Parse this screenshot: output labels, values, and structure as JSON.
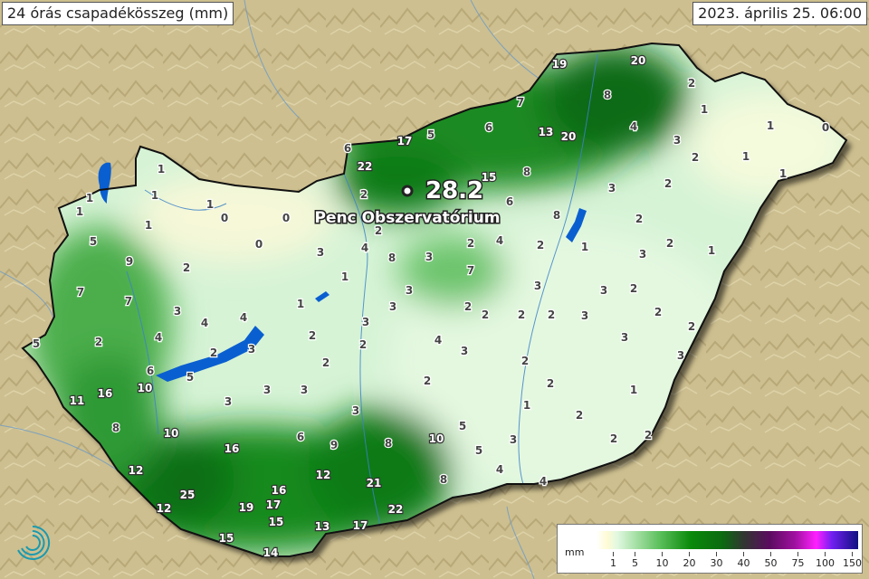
{
  "header": {
    "title": "24 órás csapadékösszeg (mm)",
    "datetime": "2023. április 25. 06:00"
  },
  "highlight_station": {
    "name": "Penc Obszervatórium",
    "value": "28.2"
  },
  "station_values": [
    "1",
    "1",
    "1",
    "1",
    "1",
    "1",
    "0",
    "0",
    "0",
    "5",
    "9",
    "2",
    "7",
    "7",
    "3",
    "4",
    "4",
    "4",
    "2",
    "5",
    "2",
    "3",
    "6",
    "5",
    "10",
    "11",
    "16",
    "3",
    "3",
    "8",
    "10",
    "16",
    "12",
    "25",
    "12",
    "19",
    "17",
    "16",
    "15",
    "15",
    "14",
    "13",
    "17",
    "22",
    "21",
    "12",
    "6",
    "9",
    "8",
    "10",
    "5",
    "5",
    "8",
    "4",
    "4",
    "3",
    "3",
    "2",
    "6",
    "22",
    "17",
    "5",
    "6",
    "19",
    "20",
    "7",
    "8",
    "13",
    "20",
    "15",
    "8",
    "6",
    "8",
    "2",
    "4",
    "8",
    "3",
    "1",
    "1",
    "2",
    "3",
    "2",
    "2",
    "3",
    "2",
    "1",
    "1",
    "0",
    "4",
    "3",
    "2",
    "1",
    "1",
    "2",
    "3",
    "2",
    "2",
    "2",
    "4",
    "1",
    "3",
    "2",
    "1",
    "3",
    "7",
    "3",
    "3",
    "2",
    "3",
    "2",
    "2",
    "2",
    "2",
    "2",
    "2",
    "3",
    "3",
    "4",
    "3",
    "2",
    "2",
    "2",
    "3",
    "1",
    "3",
    "1",
    "2",
    "2",
    "2"
  ],
  "legend": {
    "unit": "mm",
    "ticks": [
      "1",
      "5",
      "10",
      "20",
      "30",
      "40",
      "50",
      "75",
      "100",
      "150"
    ],
    "colors": [
      "#fffbd5",
      "#e0f8e0",
      "#a6e0a6",
      "#5cc05c",
      "#0a8a0a",
      "#303830",
      "#5a0b5e",
      "#a010a0",
      "#ff20ff",
      "#7020f0",
      "#101080"
    ]
  },
  "colors": {
    "land_outside": "#cdbf8f",
    "water": "#0a5fd0",
    "border": "#111111"
  }
}
